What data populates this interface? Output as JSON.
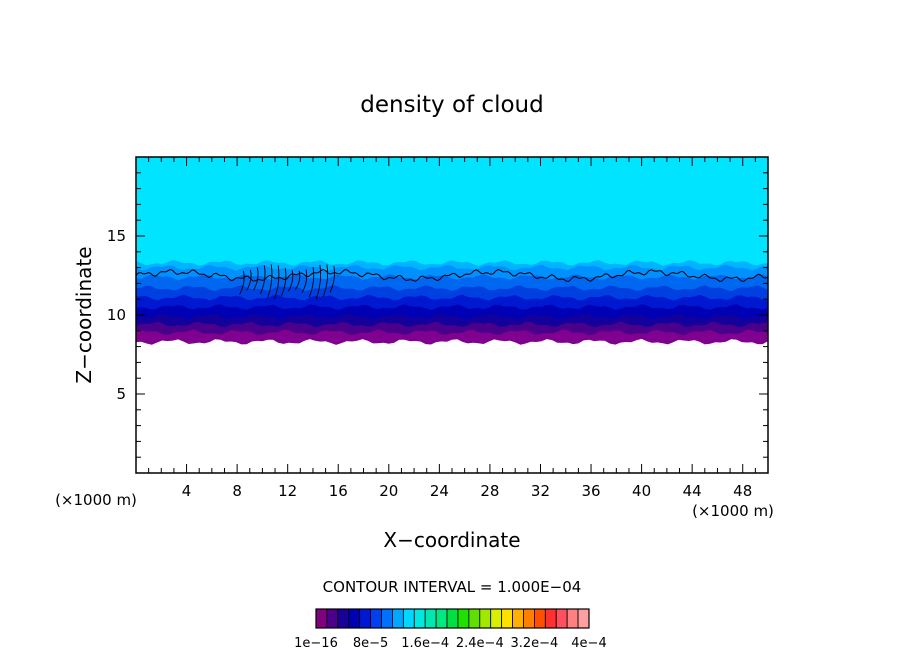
{
  "chart_data": {
    "type": "heatmap",
    "title": "density of cloud",
    "xlabel": "X−coordinate",
    "ylabel": "Z−coordinate",
    "x_unit_label": "(×1000 m)",
    "xlim": [
      0,
      50
    ],
    "ylim": [
      0,
      20
    ],
    "x_ticks": [
      {
        "value": 4,
        "label": "4"
      },
      {
        "value": 8,
        "label": "8"
      },
      {
        "value": 12,
        "label": "12"
      },
      {
        "value": 16,
        "label": "16"
      },
      {
        "value": 20,
        "label": "20"
      },
      {
        "value": 24,
        "label": "24"
      },
      {
        "value": 28,
        "label": "28"
      },
      {
        "value": 32,
        "label": "32"
      },
      {
        "value": 36,
        "label": "36"
      },
      {
        "value": 40,
        "label": "40"
      },
      {
        "value": 44,
        "label": "44"
      },
      {
        "value": 48,
        "label": "48"
      }
    ],
    "y_ticks": [
      {
        "value": 5,
        "label": "5"
      },
      {
        "value": 10,
        "label": "10"
      },
      {
        "value": 15,
        "label": "15"
      }
    ],
    "contour_interval_text": "CONTOUR INTERVAL = 1.000E−04",
    "colorbar": {
      "colors": [
        "#800080",
        "#4b008c",
        "#1a009a",
        "#0000b4",
        "#0018d2",
        "#0040f0",
        "#0070ff",
        "#00a8ff",
        "#00d8ff",
        "#00e8e0",
        "#00e8b0",
        "#00e880",
        "#00e040",
        "#20e000",
        "#60e000",
        "#a0e800",
        "#d8f000",
        "#ffe000",
        "#ffb000",
        "#ff8000",
        "#ff5000",
        "#ff3030",
        "#ff5060",
        "#ff8080",
        "#ffa0a0"
      ],
      "labels": [
        "1e−16",
        "8e−5",
        "1.6e−4",
        "2.4e−4",
        "3.2e−4",
        "4e−4"
      ]
    },
    "bands": [
      {
        "z_base": 8.6,
        "z_top": 20.0,
        "color": "#00a0ff"
      },
      {
        "z_base": 9.1,
        "z_top": 20.0,
        "color": "#00e4ff"
      },
      {
        "z_base": 9.15,
        "z_top": 13.3,
        "color": "#00b4ff"
      },
      {
        "z_base": 9.1,
        "z_top": 13.0,
        "color": "#0090ff"
      },
      {
        "z_base": 9.0,
        "z_top": 12.4,
        "color": "#0068f0"
      },
      {
        "z_base": 8.95,
        "z_top": 11.7,
        "color": "#0040e0"
      },
      {
        "z_base": 8.9,
        "z_top": 11.1,
        "color": "#0018d0"
      },
      {
        "z_base": 8.8,
        "z_top": 10.5,
        "color": "#0000b4"
      },
      {
        "z_base": 8.7,
        "z_top": 9.9,
        "color": "#14009a"
      },
      {
        "z_base": 8.5,
        "z_top": 9.4,
        "color": "#4b008c"
      },
      {
        "z_base": 8.3,
        "z_top": 8.9,
        "color": "#800090"
      }
    ],
    "contour_level_z": 12.5
  }
}
